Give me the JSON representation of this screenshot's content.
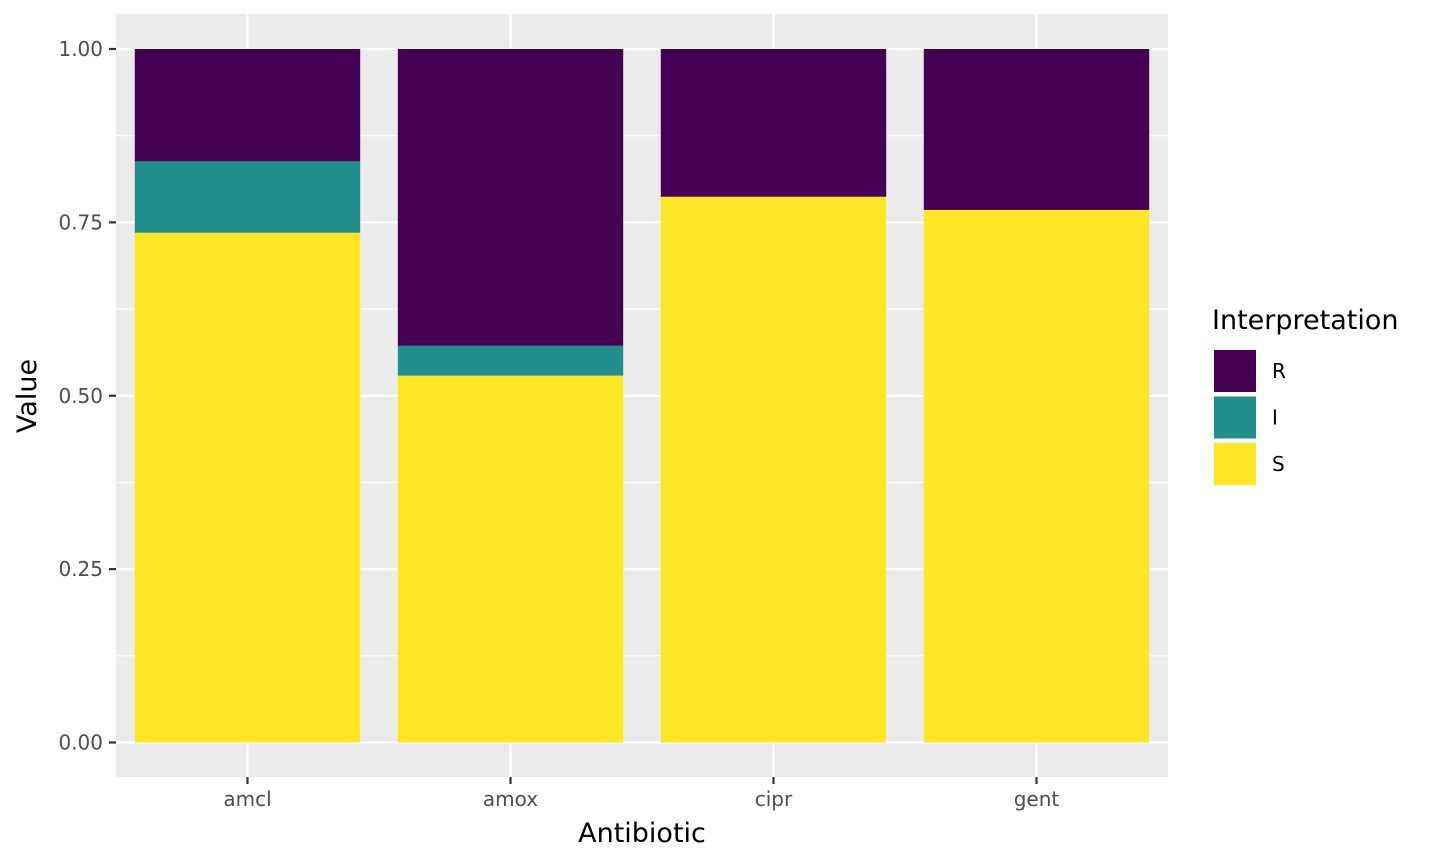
{
  "chart_data": {
    "type": "bar",
    "stacked": true,
    "categories": [
      "amcl",
      "amox",
      "cipr",
      "gent"
    ],
    "series": [
      {
        "name": "S",
        "color": "#FDE725",
        "values": [
          0.735,
          0.529,
          0.787,
          0.768
        ]
      },
      {
        "name": "I",
        "color": "#21908C",
        "values": [
          0.103,
          0.043,
          0.0,
          0.0
        ]
      },
      {
        "name": "R",
        "color": "#440154",
        "values": [
          0.162,
          0.428,
          0.213,
          0.232
        ]
      }
    ],
    "stack_order": [
      "S",
      "I",
      "R"
    ],
    "xlabel": "Antibiotic",
    "ylabel": "Value",
    "ylim": [
      0,
      1
    ],
    "yticks": [
      {
        "value": 0.0,
        "label": "0.00"
      },
      {
        "value": 0.25,
        "label": "0.25"
      },
      {
        "value": 0.5,
        "label": "0.50"
      },
      {
        "value": 0.75,
        "label": "0.75"
      },
      {
        "value": 1.0,
        "label": "1.00"
      }
    ],
    "grid": true,
    "panel_background": "#EBEBEB",
    "gridline_color": "#FFFFFF",
    "legend": {
      "title": "Interpretation",
      "position": "right",
      "items": [
        "R",
        "I",
        "S"
      ]
    }
  }
}
